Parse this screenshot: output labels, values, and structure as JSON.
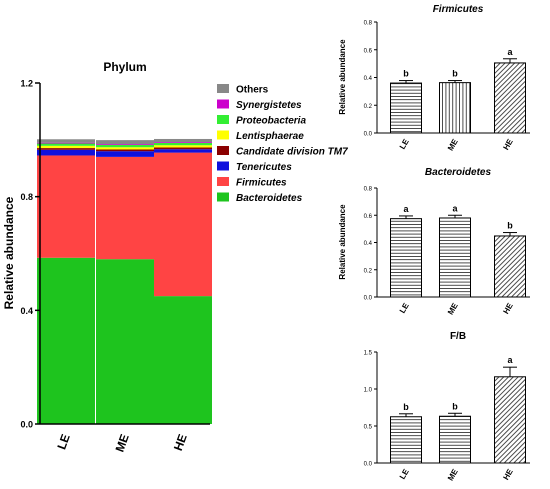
{
  "chart_data": [
    {
      "type": "bar",
      "stacked": true,
      "title": "Phylum",
      "ylabel": "Relative abundance",
      "xlabel": "",
      "categories": [
        "LE",
        "ME",
        "HE"
      ],
      "ylim": [
        0,
        1.2
      ],
      "yticks": [
        "0.0",
        "0.4",
        "0.8",
        "1.2"
      ],
      "legend_position": "right",
      "series": [
        {
          "name": "Bacteroidetes",
          "color": "#1ec41e",
          "values": [
            0.585,
            0.58,
            0.45
          ]
        },
        {
          "name": "Firmicutes",
          "color": "#ff4444",
          "values": [
            0.36,
            0.36,
            0.505
          ]
        },
        {
          "name": "Tenericutes",
          "color": "#1010dd",
          "values": [
            0.02,
            0.02,
            0.012
          ]
        },
        {
          "name": "Candidate division TM7",
          "color": "#8b0000",
          "values": [
            0.006,
            0.006,
            0.006
          ]
        },
        {
          "name": "Lentisphaerae",
          "color": "#ffff00",
          "values": [
            0.008,
            0.008,
            0.008
          ]
        },
        {
          "name": "Proteobacteria",
          "color": "#33ee33",
          "values": [
            0.008,
            0.008,
            0.008
          ]
        },
        {
          "name": "Synergistetes",
          "color": "#cc00cc",
          "values": [
            0.003,
            0.003,
            0.003
          ]
        },
        {
          "name": "Others",
          "color": "#888888",
          "values": [
            0.012,
            0.014,
            0.011
          ]
        }
      ],
      "legend_order": [
        "Others",
        "Synergistetes",
        "Proteobacteria",
        "Lentisphaerae",
        "Candidate division TM7",
        "Tenericutes",
        "Firmicutes",
        "Bacteroidetes"
      ]
    },
    {
      "type": "bar",
      "title": "Firmicutes",
      "ylabel": "Relative abundance",
      "categories": [
        "LE",
        "ME",
        "HE"
      ],
      "values": [
        0.36,
        0.363,
        0.505
      ],
      "errors": [
        0.018,
        0.015,
        0.03
      ],
      "letters": [
        "b",
        "b",
        "a"
      ],
      "ylim": [
        0,
        0.8
      ],
      "yticks": [
        "0.0",
        "0.2",
        "0.4",
        "0.6",
        "0.8"
      ],
      "patterns": [
        "horizontal",
        "vertical",
        "diagonal"
      ]
    },
    {
      "type": "bar",
      "title": "Bacteroidetes",
      "ylabel": "Relative abundance",
      "categories": [
        "LE",
        "ME",
        "HE"
      ],
      "values": [
        0.575,
        0.58,
        0.448
      ],
      "errors": [
        0.02,
        0.02,
        0.025
      ],
      "letters": [
        "a",
        "a",
        "b"
      ],
      "ylim": [
        0,
        0.8
      ],
      "yticks": [
        "0.0",
        "0.2",
        "0.4",
        "0.6",
        "0.8"
      ],
      "patterns": [
        "horizontal",
        "horizontal",
        "diagonal"
      ]
    },
    {
      "type": "bar",
      "title": "F/B",
      "ylabel": "",
      "categories": [
        "LE",
        "ME",
        "HE"
      ],
      "values": [
        0.625,
        0.632,
        1.165
      ],
      "errors": [
        0.04,
        0.04,
        0.13
      ],
      "letters": [
        "b",
        "b",
        "a"
      ],
      "ylim": [
        0,
        1.5
      ],
      "yticks": [
        "0.0",
        "0.5",
        "1.0",
        "1.5"
      ],
      "patterns": [
        "horizontal",
        "horizontal",
        "diagonal"
      ]
    }
  ]
}
